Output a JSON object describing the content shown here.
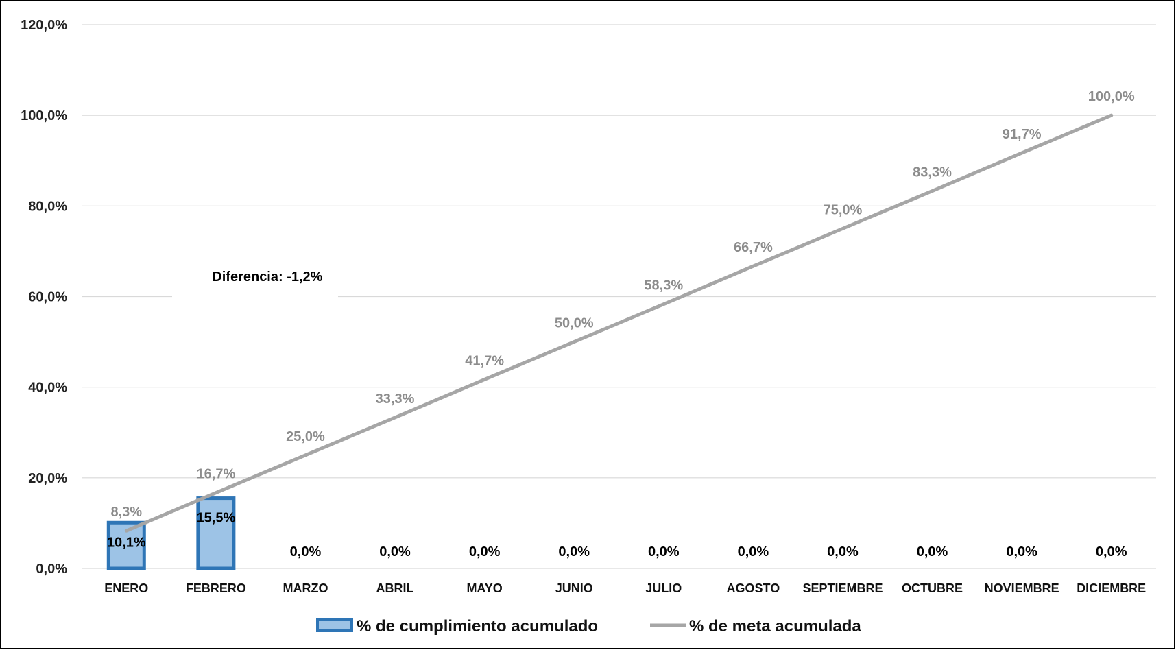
{
  "chart_data": {
    "type": "bar",
    "categories": [
      "ENERO",
      "FEBRERO",
      "MARZO",
      "ABRIL",
      "MAYO",
      "JUNIO",
      "JULIO",
      "AGOSTO",
      "SEPTIEMBRE",
      "OCTUBRE",
      "NOVIEMBRE",
      "DICIEMBRE"
    ],
    "series": [
      {
        "name": "% de cumplimiento acumulado",
        "type": "bar",
        "values": [
          10.1,
          15.5,
          0,
          0,
          0,
          0,
          0,
          0,
          0,
          0,
          0,
          0
        ],
        "labels": [
          "10,1%",
          "15,5%",
          "0,0%",
          "0,0%",
          "0,0%",
          "0,0%",
          "0,0%",
          "0,0%",
          "0,0%",
          "0,0%",
          "0,0%",
          "0,0%"
        ],
        "color": "#9dc3e6",
        "border_color": "#2e75b6"
      },
      {
        "name": "% de meta acumulada",
        "type": "line",
        "values": [
          8.3,
          16.7,
          25.0,
          33.3,
          41.7,
          50.0,
          58.3,
          66.7,
          75.0,
          83.3,
          91.7,
          100.0
        ],
        "labels": [
          "8,3%",
          "16,7%",
          "25,0%",
          "33,3%",
          "41,7%",
          "50,0%",
          "58,3%",
          "66,7%",
          "75,0%",
          "83,3%",
          "91,7%",
          "100,0%"
        ],
        "color": "#a6a6a6"
      }
    ],
    "ylim": [
      0,
      120
    ],
    "yticks": [
      0,
      20,
      40,
      60,
      80,
      100,
      120
    ],
    "ytick_labels": [
      "0,0%",
      "20,0%",
      "40,0%",
      "60,0%",
      "80,0%",
      "100,0%",
      "120,0%"
    ],
    "grid": true,
    "legend": "bottom",
    "annotation": "Diferencia: -1,2%",
    "annotation_at": {
      "x_category": "FEBRERO",
      "y": 64.5
    },
    "gridline_color": "#d9d9d9"
  }
}
